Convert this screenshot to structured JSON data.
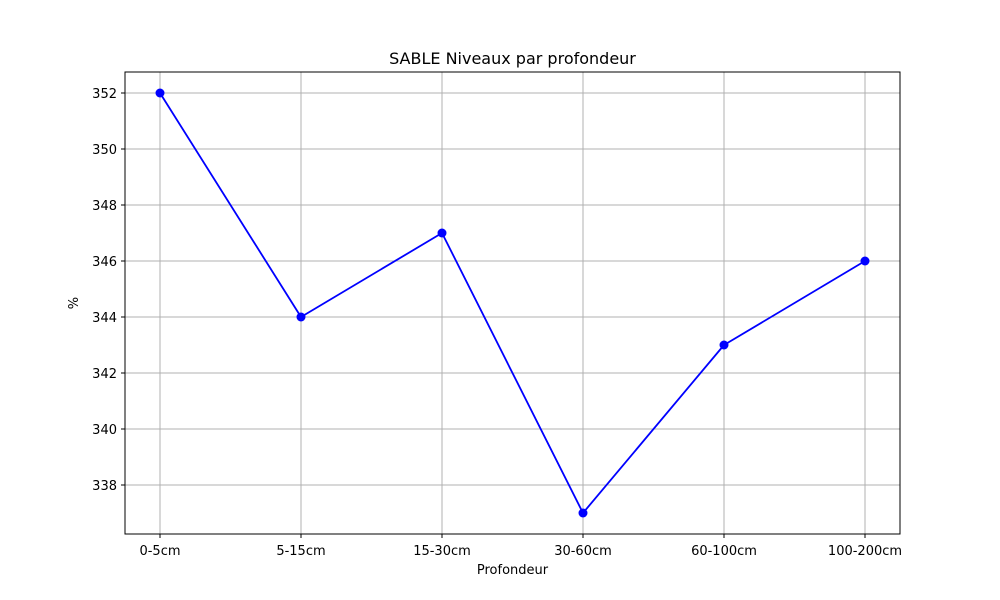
{
  "chart_data": {
    "type": "line",
    "title": "SABLE Niveaux par profondeur",
    "xlabel": "Profondeur",
    "ylabel": "%",
    "categories": [
      "0-5cm",
      "5-15cm",
      "15-30cm",
      "30-60cm",
      "60-100cm",
      "100-200cm"
    ],
    "series": [
      {
        "values": [
          352,
          344,
          347,
          337,
          343,
          346
        ],
        "color": "#0000ff",
        "marker": "circle"
      }
    ],
    "y_ticks": [
      338,
      340,
      342,
      344,
      346,
      348,
      350,
      352
    ],
    "ylim": [
      336.25,
      352.75
    ],
    "grid": true,
    "frame_color": "#000000",
    "grid_color": "#b0b0b0"
  }
}
